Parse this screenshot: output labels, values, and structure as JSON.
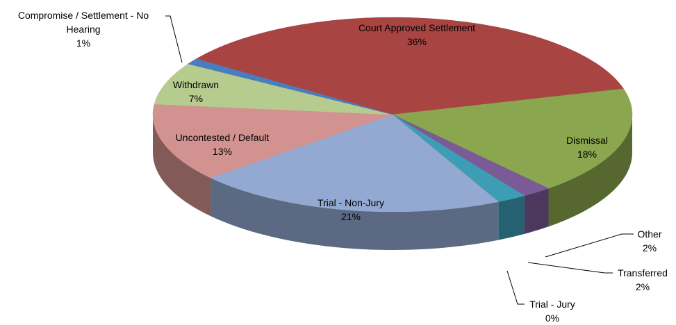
{
  "chart_data": {
    "type": "pie3d",
    "categories": [
      "Court Approved Settlement",
      "Dismissal",
      "Other",
      "Transferred",
      "Trial - Jury",
      "Trial - Non-Jury",
      "Uncontested / Default",
      "Withdrawn",
      "Compromise / Settlement - No Hearing"
    ],
    "values": [
      36,
      18,
      2,
      2,
      0,
      21,
      13,
      7,
      1
    ],
    "value_labels": [
      "36%",
      "18%",
      "2%",
      "2%",
      "0%",
      "21%",
      "13%",
      "7%",
      "1%"
    ],
    "colors": [
      "#a84442",
      "#8aa64e",
      "#7a5b96",
      "#3c9db5",
      "#e88a2e",
      "#93a9d1",
      "#d29290",
      "#b6cc8f",
      "#4a7dbd"
    ]
  }
}
